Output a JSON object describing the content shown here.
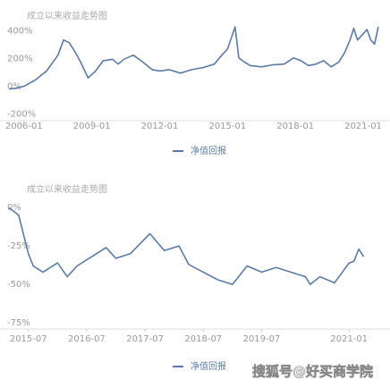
{
  "chart_data": [
    {
      "type": "line",
      "title": "成立以来收益走势图",
      "x": [
        "2005-05",
        "2005-09",
        "2006-01",
        "2006-07",
        "2007-01",
        "2007-07",
        "2007-10",
        "2008-01",
        "2008-04",
        "2008-07",
        "2008-11",
        "2009-03",
        "2009-07",
        "2009-12",
        "2010-03",
        "2010-06",
        "2010-11",
        "2011-04",
        "2011-09",
        "2012-01",
        "2012-06",
        "2012-12",
        "2013-06",
        "2013-12",
        "2014-06",
        "2014-10",
        "2015-01",
        "2015-05",
        "2015-07",
        "2015-10",
        "2016-01",
        "2016-07",
        "2017-01",
        "2017-07",
        "2017-12",
        "2018-04",
        "2018-08",
        "2018-12",
        "2019-04",
        "2019-08",
        "2019-12",
        "2020-03",
        "2020-06",
        "2020-08",
        "2020-10",
        "2021-01",
        "2021-03",
        "2021-05",
        "2021-07",
        "2021-09"
      ],
      "series": [
        {
          "name": "净值回报",
          "color": "#5b7ba6",
          "values": [
            -20,
            -15,
            0,
            45,
            110,
            225,
            335,
            315,
            250,
            175,
            60,
            110,
            185,
            195,
            160,
            195,
            225,
            175,
            120,
            110,
            120,
            95,
            120,
            135,
            160,
            225,
            270,
            430,
            205,
            175,
            150,
            140,
            155,
            160,
            205,
            185,
            150,
            160,
            185,
            140,
            175,
            240,
            335,
            420,
            335,
            380,
            410,
            335,
            305,
            430
          ]
        }
      ],
      "xlim": [
        "2005-05",
        "2021-10"
      ],
      "xticks": [
        "2006-01",
        "2009-01",
        "2012-01",
        "2015-01",
        "2018-01",
        "2021-01"
      ],
      "ylim": [
        -250,
        560
      ],
      "yticks": [
        {
          "value": 400,
          "label": "400%"
        },
        {
          "value": 200,
          "label": "200%"
        },
        {
          "value": 0,
          "label": "0%"
        },
        {
          "value": -200,
          "label": "-200%"
        }
      ],
      "grid": false
    },
    {
      "type": "line",
      "title": "成立以来收益走势图",
      "x": [
        "2015-03",
        "2015-05",
        "2015-07",
        "2015-08",
        "2015-10",
        "2016-01",
        "2016-03",
        "2016-05",
        "2016-08",
        "2016-11",
        "2017-01",
        "2017-04",
        "2017-08",
        "2017-11",
        "2018-02",
        "2018-04",
        "2018-07",
        "2018-10",
        "2019-01",
        "2019-04",
        "2019-07",
        "2019-10",
        "2020-01",
        "2020-04",
        "2020-05",
        "2020-07",
        "2020-10",
        "2021-01",
        "2021-02",
        "2021-03",
        "2021-04"
      ],
      "series": [
        {
          "name": "净值回报",
          "color": "#5b7ba6",
          "values": [
            0,
            -5,
            -30,
            -38,
            -42,
            -36,
            -45,
            -38,
            -32,
            -26,
            -33,
            -30,
            -17,
            -28,
            -25,
            -37,
            -42,
            -47,
            -50,
            -38,
            -42,
            -39,
            -42,
            -45,
            -50,
            -45,
            -49,
            -36,
            -35,
            -27,
            -32
          ]
        }
      ],
      "xlim": [
        "2015-03",
        "2021-05"
      ],
      "xticks": [
        "2015-07",
        "2016-07",
        "2017-07",
        "2018-07",
        "2019-07",
        "2021-01"
      ],
      "ylim": [
        -79,
        3
      ],
      "yticks": [
        {
          "value": 0,
          "label": "0%"
        },
        {
          "value": -25,
          "label": "-25%"
        },
        {
          "value": -50,
          "label": "-50%"
        },
        {
          "value": -75,
          "label": "-75%"
        }
      ],
      "grid": false
    }
  ],
  "watermark": "搜狐号@好买商学院"
}
